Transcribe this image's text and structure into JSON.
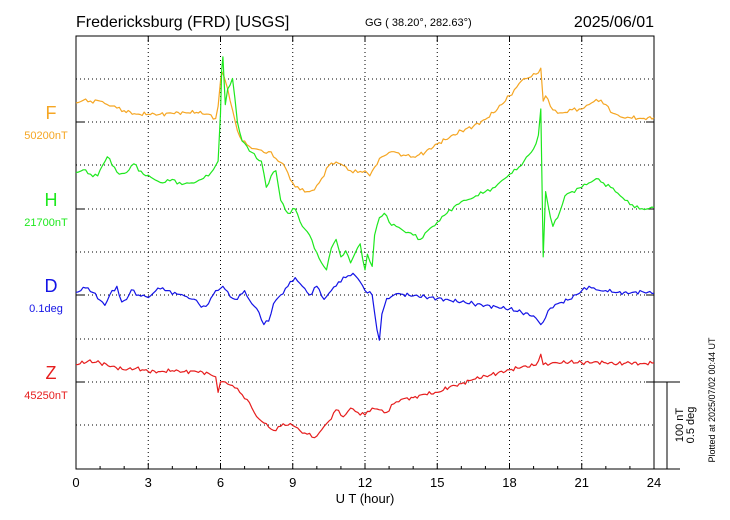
{
  "header": {
    "station": "Fredericksburg (FRD)  [USGS]",
    "coords": "GG ( 38.20°, 282.63°)",
    "date": "2025/06/01"
  },
  "footer": {
    "plotted": "Plotted at 2025/07/02 00:44 UT"
  },
  "scale_bar": {
    "nt": "100 nT",
    "deg": "0.5 deg"
  },
  "chart_data": {
    "type": "line",
    "xlabel": "U T (hour)",
    "xlim": [
      0,
      24
    ],
    "xticks": [
      0,
      3,
      6,
      9,
      12,
      15,
      18,
      21,
      24
    ],
    "x_tick_labels": [
      "0",
      "3",
      "6",
      "9",
      "12",
      "15",
      "18",
      "21",
      "24"
    ],
    "grid": true,
    "series": [
      {
        "name": "F",
        "baseline_label": "50200nT",
        "color": "#f5a623",
        "x": [
          0,
          0.3,
          0.6,
          1,
          1.3,
          1.7,
          2,
          2.5,
          3,
          3.5,
          4,
          4.5,
          5,
          5.5,
          5.8,
          5.9,
          6,
          6.05,
          6.15,
          6.3,
          6.5,
          6.7,
          6.9,
          7.2,
          7.5,
          7.8,
          8,
          8.3,
          8.6,
          9,
          9.3,
          9.6,
          9.9,
          10.2,
          10.5,
          10.8,
          11.1,
          11.4,
          11.7,
          12,
          12.2,
          12.4,
          12.7,
          13,
          13.3,
          13.6,
          14,
          14.5,
          15,
          15.5,
          16,
          16.5,
          17,
          17.5,
          18,
          18.3,
          18.6,
          18.9,
          19.1,
          19.3,
          19.4,
          19.5,
          19.7,
          20,
          20.3,
          20.6,
          21,
          21.3,
          21.6,
          22,
          22.3,
          22.6,
          23,
          23.5,
          24
        ],
        "values": [
          22,
          25,
          24,
          24,
          20,
          16,
          13,
          9,
          9,
          9,
          10,
          11,
          11,
          9,
          4,
          18,
          47,
          58,
          52,
          38,
          14,
          -10,
          -22,
          -28,
          -31,
          -35,
          -34,
          -42,
          -48,
          -70,
          -78,
          -80,
          -78,
          -65,
          -50,
          -46,
          -50,
          -56,
          -58,
          -56,
          -62,
          -52,
          -40,
          -35,
          -35,
          -38,
          -40,
          -35,
          -25,
          -18,
          -10,
          -5,
          3,
          15,
          30,
          40,
          50,
          52,
          55,
          62,
          24,
          30,
          18,
          10,
          11,
          14,
          15,
          20,
          26,
          20,
          10,
          6,
          5,
          4,
          5
        ]
      },
      {
        "name": "H",
        "baseline_label": "21700nT",
        "color": "#1ee81e",
        "x": [
          0,
          0.3,
          0.6,
          0.9,
          1.1,
          1.3,
          1.6,
          1.8,
          2.1,
          2.4,
          2.8,
          3.2,
          3.6,
          4,
          4.4,
          4.8,
          5.2,
          5.5,
          5.7,
          5.8,
          5.9,
          6,
          6.05,
          6.1,
          6.2,
          6.3,
          6.5,
          6.7,
          6.9,
          7.1,
          7.3,
          7.5,
          7.7,
          7.9,
          8.1,
          8.3,
          8.5,
          8.8,
          9.1,
          9.4,
          9.7,
          10,
          10.2,
          10.4,
          10.6,
          10.8,
          11,
          11.2,
          11.4,
          11.6,
          11.8,
          12,
          12.1,
          12.2,
          12.3,
          12.4,
          12.6,
          12.8,
          13,
          13.3,
          13.6,
          14,
          14.3,
          14.6,
          15,
          15.4,
          15.8,
          16.2,
          16.6,
          17,
          17.4,
          17.8,
          18,
          18.3,
          18.6,
          18.9,
          19.1,
          19.2,
          19.3,
          19.4,
          19.5,
          19.6,
          19.8,
          20,
          20.3,
          20.6,
          21,
          21.3,
          21.6,
          21.9,
          22.2,
          22.5,
          22.8,
          23.1,
          23.4,
          23.7,
          24
        ],
        "values": [
          42,
          45,
          40,
          38,
          50,
          60,
          48,
          40,
          42,
          52,
          40,
          35,
          30,
          34,
          28,
          30,
          34,
          38,
          45,
          50,
          55,
          110,
          160,
          175,
          120,
          138,
          150,
          100,
          78,
          72,
          65,
          58,
          55,
          25,
          38,
          44,
          10,
          -5,
          0,
          -20,
          -30,
          -50,
          -62,
          -70,
          -45,
          -35,
          -55,
          -48,
          -62,
          -50,
          -40,
          -70,
          -52,
          -60,
          -66,
          -30,
          -10,
          -5,
          -15,
          -20,
          -25,
          -30,
          -35,
          -25,
          -15,
          -5,
          5,
          10,
          15,
          20,
          25,
          35,
          40,
          45,
          55,
          65,
          75,
          85,
          115,
          -55,
          20,
          5,
          -20,
          -10,
          15,
          20,
          25,
          30,
          35,
          30,
          25,
          18,
          10,
          5,
          0,
          0,
          2
        ]
      },
      {
        "name": "D",
        "baseline_label": "0.1deg",
        "color": "#1414e6",
        "x": [
          0,
          0.4,
          0.8,
          1,
          1.2,
          1.4,
          1.7,
          1.9,
          2.1,
          2.3,
          2.6,
          3,
          3.4,
          3.8,
          4.2,
          4.6,
          5,
          5.2,
          5.5,
          5.8,
          6.1,
          6.4,
          6.7,
          7,
          7.3,
          7.6,
          7.8,
          8,
          8.2,
          8.5,
          8.8,
          9.1,
          9.4,
          9.7,
          10,
          10.3,
          10.6,
          10.9,
          11.2,
          11.5,
          11.8,
          12,
          12.3,
          12.5,
          12.6,
          12.7,
          12.9,
          13.2,
          13.5,
          14,
          14.5,
          15,
          15.5,
          16,
          16.5,
          17,
          17.5,
          18,
          18.5,
          19,
          19.3,
          19.5,
          19.7,
          20,
          20.5,
          21,
          21.3,
          21.6,
          22,
          22.5,
          23,
          23.5,
          24
        ],
        "values": [
          3,
          8,
          2,
          -6,
          -12,
          0,
          10,
          -8,
          -5,
          6,
          0,
          -3,
          8,
          5,
          1,
          -2,
          -6,
          -14,
          -10,
          5,
          10,
          -2,
          -5,
          5,
          -10,
          -20,
          -34,
          -30,
          -10,
          0,
          10,
          20,
          10,
          0,
          10,
          -5,
          5,
          15,
          20,
          25,
          15,
          5,
          0,
          -40,
          -52,
          -22,
          -4,
          0,
          1,
          -1,
          -2,
          -4,
          -6,
          -8,
          -10,
          -12,
          -14,
          -16,
          -20,
          -24,
          -34,
          -26,
          -15,
          -10,
          -5,
          5,
          10,
          6,
          5,
          3,
          2,
          4,
          2
        ]
      },
      {
        "name": "Z",
        "baseline_label": "45250nT",
        "color": "#e61e1e",
        "x": [
          0,
          0.5,
          1,
          1.5,
          2,
          2.5,
          3,
          3.5,
          4,
          4.5,
          5,
          5.5,
          5.8,
          5.9,
          6,
          6.2,
          6.5,
          6.8,
          7.1,
          7.4,
          7.7,
          8,
          8.3,
          8.6,
          9,
          9.3,
          9.6,
          9.9,
          10.2,
          10.5,
          10.8,
          11.1,
          11.4,
          11.7,
          12,
          12.3,
          12.6,
          12.9,
          13.2,
          13.5,
          14,
          14.5,
          15,
          15.5,
          16,
          16.5,
          17,
          17.5,
          18,
          18.5,
          19,
          19.2,
          19.3,
          19.4,
          19.5,
          19.7,
          20,
          20.5,
          21,
          21.5,
          22,
          22.5,
          23,
          23.5,
          24
        ],
        "values": [
          20,
          24,
          22,
          18,
          14,
          16,
          12,
          12,
          13,
          12,
          12,
          10,
          6,
          -12,
          0,
          0,
          -4,
          -12,
          -20,
          -35,
          -45,
          -52,
          -56,
          -48,
          -50,
          -56,
          -60,
          -64,
          -55,
          -45,
          -32,
          -40,
          -30,
          -35,
          -38,
          -30,
          -32,
          -35,
          -25,
          -20,
          -18,
          -14,
          -12,
          -6,
          -2,
          3,
          7,
          10,
          14,
          17,
          19,
          24,
          32,
          20,
          22,
          21,
          22,
          23,
          22,
          23,
          22,
          21,
          22,
          21,
          22
        ]
      }
    ]
  }
}
